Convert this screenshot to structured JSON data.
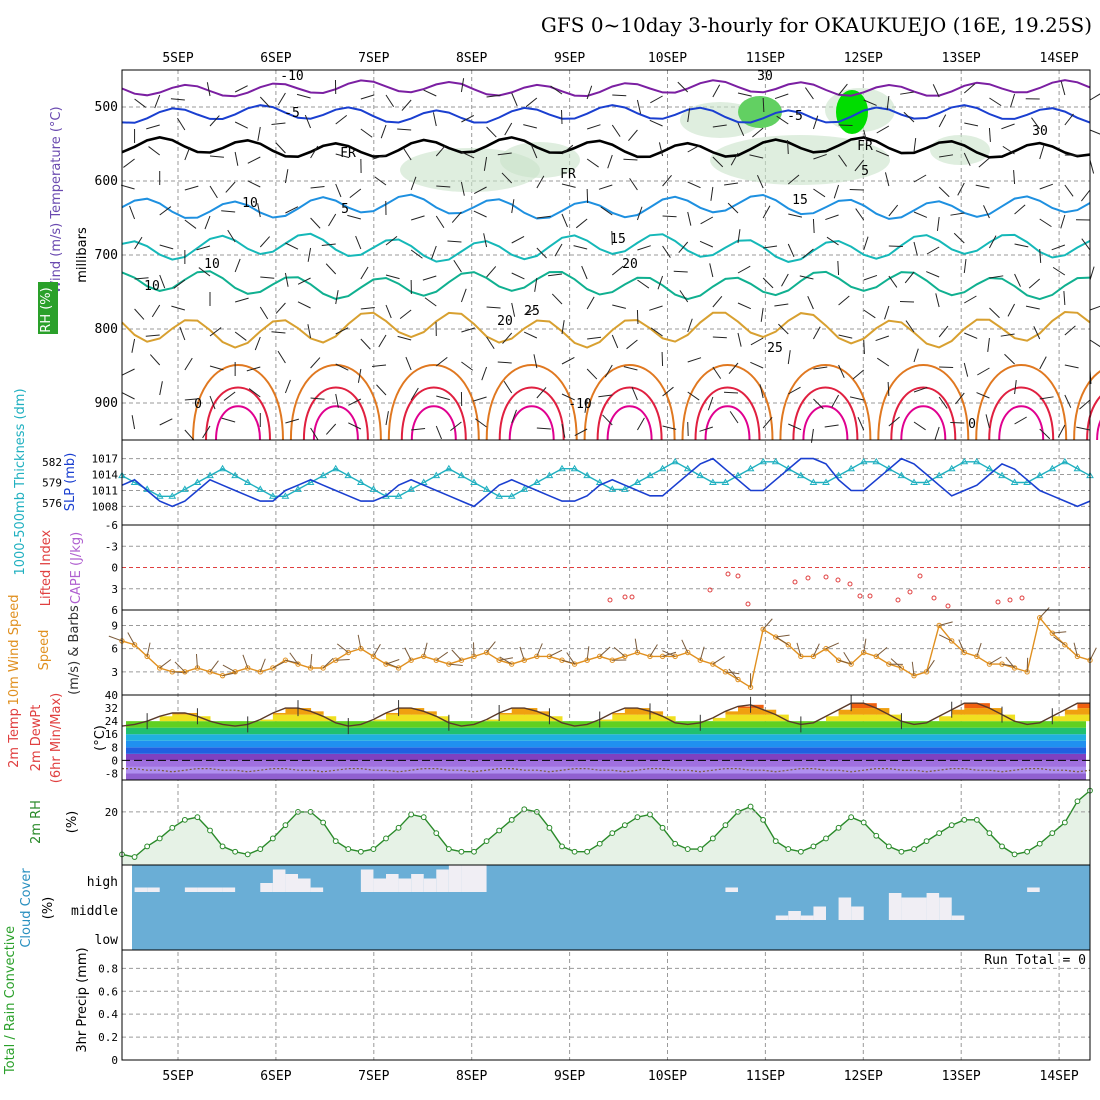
{
  "chart_data": {
    "type": "meteogram",
    "title": "GFS 0~10day 3-hourly for OKAUKUEJO (16E, 19.25S)",
    "dates": [
      "5SEP",
      "6SEP",
      "7SEP",
      "8SEP",
      "9SEP",
      "10SEP",
      "11SEP",
      "12SEP",
      "13SEP",
      "14SEP"
    ],
    "steps": 78,
    "colors": {
      "grid": "#9a9a9a",
      "temp_cold": "#7b1fa2",
      "temp_m5": "#1a3fd0",
      "temp_5": "#1e90e0",
      "temp_10": "#15b8b8",
      "temp_15": "#10b090",
      "temp_20": "#d8a030",
      "temp_25": "#e07820",
      "temp_30": "#e02040",
      "temp_35": "#e00090",
      "rh": "#2a9a2a",
      "slp": "#1a3fd0",
      "thick": "#20b0c0",
      "li": "#e04040",
      "wind": "#e09020",
      "barb": "#7a5a3a",
      "cloud_bg": "#6aaed6",
      "cloud": "#f0eef4",
      "rh2m": "#2a8a2a",
      "rh2m_fill": "#e6f2e6",
      "dewpt": "#7a5a3a",
      "zero": "#000000"
    },
    "upper_air": {
      "title": "Wind (m/s) Temperature (°C)",
      "ylabel": "millibars",
      "rh_label": "RH (%)",
      "yticks": [
        "500",
        "600",
        "700",
        "800",
        "900"
      ],
      "ylim": [
        450,
        950
      ],
      "isotherm_labels": [
        "-10",
        "-5",
        "FR",
        "10",
        "5",
        "10",
        "15",
        "20",
        "25",
        "25",
        "0",
        "0",
        "-10",
        "-5",
        "FR",
        "FR",
        "5",
        "15",
        "10",
        "20",
        "30",
        "30"
      ],
      "isotherms": [
        {
          "level": 475,
          "amp": 8,
          "label": "-10"
        },
        {
          "level": 510,
          "amp": 9,
          "label": "-5"
        },
        {
          "level": 555,
          "amp": 10,
          "label": "FR"
        },
        {
          "level": 635,
          "amp": 12,
          "label": "5"
        },
        {
          "level": 690,
          "amp": 14,
          "label": "10"
        },
        {
          "level": 740,
          "amp": 14,
          "label": "15"
        },
        {
          "level": 800,
          "amp": 18,
          "label": "20"
        }
      ]
    },
    "slp_thickness": {
      "ylabel_left": "1000-500mb Thickness (dm)",
      "ylabel_right": "SLP (mb)",
      "thickness_ticks": [
        "582",
        "579",
        "576"
      ],
      "slp_ticks": [
        "1017",
        "1014",
        "1011",
        "1008"
      ],
      "thickness_range": [
        574,
        584
      ],
      "slp_range": [
        1006,
        1019
      ],
      "thickness": [
        580,
        579,
        578,
        577,
        577,
        578,
        579,
        580,
        581,
        580,
        579,
        578,
        577,
        577,
        578,
        579,
        580,
        581,
        580,
        579,
        578,
        577,
        577,
        578,
        579,
        580,
        581,
        580,
        579,
        578,
        577,
        577,
        578,
        579,
        580,
        581,
        581,
        580,
        579,
        578,
        578,
        579,
        580,
        581,
        582,
        581,
        580,
        579,
        579,
        580,
        581,
        582,
        582,
        581,
        580,
        579,
        579,
        580,
        581,
        582,
        582,
        581,
        580,
        579,
        579,
        580,
        581,
        582,
        582,
        581,
        580,
        579,
        579,
        580,
        581,
        582,
        581,
        580
      ],
      "slp": [
        1012,
        1013,
        1011,
        1009,
        1008,
        1009,
        1011,
        1013,
        1012,
        1011,
        1010,
        1009,
        1009,
        1011,
        1012,
        1013,
        1012,
        1011,
        1010,
        1009,
        1009,
        1010,
        1012,
        1013,
        1012,
        1011,
        1010,
        1009,
        1008,
        1010,
        1012,
        1013,
        1012,
        1011,
        1010,
        1009,
        1009,
        1010,
        1012,
        1013,
        1012,
        1011,
        1010,
        1010,
        1012,
        1014,
        1016,
        1017,
        1015,
        1013,
        1011,
        1011,
        1013,
        1015,
        1017,
        1017,
        1016,
        1013,
        1011,
        1011,
        1013,
        1015,
        1017,
        1016,
        1014,
        1012,
        1010,
        1011,
        1012,
        1014,
        1016,
        1015,
        1013,
        1011,
        1010,
        1009,
        1008,
        1009
      ]
    },
    "lifted_index": {
      "ylabel_left": "Lifted Index",
      "ylabel_right": "CAPE (J/kg)",
      "yticks": [
        "-6",
        "-3",
        "0",
        "3",
        "6"
      ],
      "ylim": [
        -6,
        6
      ],
      "values": [
        null,
        null,
        null,
        null,
        null,
        null,
        null,
        null,
        null,
        null,
        null,
        null,
        null,
        null,
        null,
        null,
        null,
        null,
        null,
        null,
        null,
        null,
        null,
        null,
        null,
        null,
        null,
        null,
        null,
        null,
        null,
        null,
        null,
        null,
        null,
        null,
        null,
        null,
        null,
        null,
        null,
        null,
        null,
        null,
        null,
        null,
        null,
        null,
        null,
        null,
        null,
        null,
        null,
        null,
        null,
        null,
        null,
        null,
        null,
        null,
        null,
        null,
        null,
        null,
        null,
        null,
        null,
        null,
        null,
        null,
        null,
        null,
        null,
        null,
        null,
        null,
        null,
        null
      ]
    },
    "wind10m": {
      "ylabel_left": "10m Wind Speed",
      "ylabel_right": "(m/s) & Barbs",
      "yticks": [
        "9",
        "6",
        "3"
      ],
      "ylim": [
        0,
        11
      ],
      "values": [
        7,
        6.5,
        5,
        3.5,
        3,
        3,
        3.5,
        3,
        2.5,
        3,
        3.5,
        3,
        3.5,
        4.5,
        4,
        3.5,
        3.5,
        4.5,
        5.5,
        6,
        5,
        4,
        3.5,
        4.5,
        5,
        4.5,
        4,
        4.5,
        5,
        5.5,
        4.5,
        4,
        4.5,
        5,
        5,
        4.5,
        4,
        4.5,
        5,
        4.5,
        5,
        5.5,
        5,
        5,
        5,
        5.5,
        4.5,
        4,
        3,
        2,
        1,
        8.5,
        7.5,
        6.5,
        5,
        5,
        6,
        4.5,
        4,
        5.5,
        5,
        4,
        3.5,
        2.5,
        3,
        9,
        7,
        5.5,
        5,
        4,
        4,
        3.5,
        3,
        10,
        8,
        6.5,
        5,
        4.5
      ]
    },
    "temp2m": {
      "ylabel_left": "2m Temp 2m DewPt (6hr Min/Max)",
      "ylabel_right": "(°C)",
      "yticks": [
        "40",
        "32",
        "24",
        "16",
        "8",
        "0",
        "-8"
      ],
      "ylim": [
        -12,
        40
      ],
      "temp": [
        21,
        22,
        24,
        27,
        29,
        29,
        27,
        24,
        22,
        21,
        22,
        25,
        29,
        32,
        32,
        30,
        27,
        23,
        21,
        22,
        25,
        29,
        32,
        32,
        30,
        27,
        23,
        21,
        22,
        25,
        29,
        32,
        32,
        30,
        27,
        23,
        21,
        22,
        25,
        29,
        32,
        32,
        30,
        27,
        23,
        22,
        23,
        26,
        30,
        33,
        34,
        31,
        28,
        24,
        22,
        23,
        27,
        31,
        35,
        35,
        32,
        28,
        24,
        22,
        23,
        27,
        31,
        35,
        35,
        32,
        28,
        24,
        22,
        23,
        27,
        31,
        35,
        35
      ],
      "dewpt": [
        -5,
        -5,
        -6,
        -6,
        -7,
        -6,
        -5,
        -5,
        -6,
        -6,
        -7,
        -6,
        -5,
        -5,
        -6,
        -6,
        -7,
        -6,
        -5,
        -5,
        -6,
        -6,
        -7,
        -6,
        -5,
        -5,
        -6,
        -6,
        -7,
        -6,
        -5,
        -5,
        -6,
        -6,
        -7,
        -6,
        -5,
        -5,
        -6,
        -6,
        -7,
        -6,
        -5,
        -5,
        -6,
        -6,
        -7,
        -6,
        -5,
        -5,
        -6,
        -6,
        -7,
        -6,
        -5,
        -5,
        -6,
        -6,
        -7,
        -6,
        -5,
        -5,
        -6,
        -6,
        -7,
        -6,
        -5,
        -5,
        -6,
        -6,
        -7,
        -6,
        -5,
        -5,
        -6,
        -6,
        -7,
        -6
      ]
    },
    "rh2m": {
      "ylabel_left": "2m RH",
      "ylabel_right": "(%)",
      "yticks": [
        "20"
      ],
      "ylim": [
        0,
        32
      ],
      "values": [
        4,
        3,
        7,
        10,
        14,
        17,
        18,
        13,
        7,
        5,
        4,
        6,
        10,
        15,
        20,
        20,
        16,
        9,
        6,
        5,
        6,
        10,
        14,
        19,
        18,
        12,
        6,
        5,
        5,
        9,
        13,
        17,
        21,
        20,
        14,
        7,
        5,
        5,
        8,
        12,
        15,
        18,
        19,
        14,
        8,
        6,
        6,
        10,
        15,
        20,
        22,
        17,
        9,
        6,
        5,
        7,
        10,
        14,
        18,
        16,
        11,
        7,
        5,
        6,
        9,
        12,
        15,
        17,
        17,
        12,
        7,
        4,
        5,
        8,
        12,
        16,
        24,
        28
      ]
    },
    "cloud": {
      "ylabel_left": "Cloud Cover",
      "ylabel_right": "(%)",
      "yticks": [
        "high",
        "middle",
        "low"
      ],
      "high": [
        0,
        1,
        1,
        0,
        0,
        1,
        1,
        1,
        1,
        0,
        0,
        2,
        5,
        4,
        3,
        1,
        0,
        0,
        0,
        5,
        3,
        4,
        3,
        4,
        3,
        5,
        6,
        6,
        6,
        0,
        0,
        0,
        0,
        0,
        0,
        0,
        0,
        0,
        0,
        0,
        0,
        0,
        0,
        0,
        0,
        0,
        0,
        0,
        1,
        0,
        0,
        0,
        0,
        0,
        0,
        0,
        0,
        0,
        0,
        0,
        0,
        0,
        0,
        0,
        0,
        0,
        0,
        0,
        0,
        0,
        0,
        0,
        1,
        0,
        0,
        0,
        0,
        0
      ],
      "middle": [
        0,
        0,
        0,
        0,
        0,
        0,
        0,
        0,
        0,
        0,
        0,
        0,
        0,
        0,
        0,
        0,
        0,
        0,
        0,
        0,
        0,
        0,
        0,
        0,
        0,
        0,
        0,
        0,
        0,
        0,
        0,
        0,
        0,
        0,
        0,
        0,
        0,
        0,
        0,
        0,
        0,
        0,
        0,
        0,
        0,
        0,
        0,
        0,
        0,
        0,
        0,
        0,
        1,
        2,
        1,
        3,
        0,
        5,
        3,
        0,
        0,
        6,
        5,
        5,
        6,
        5,
        1,
        0,
        0,
        0,
        0,
        0,
        0,
        0,
        0,
        0,
        0,
        0
      ]
    },
    "precip": {
      "ylabel_left": "Total / Rain Convective",
      "ylabel_right": "3hr Precip (mm)",
      "yticks": [
        "0.8",
        "0.6",
        "0.4",
        "0.2",
        "0"
      ],
      "ylim": [
        0,
        0.96
      ],
      "run_total": "Run Total = 0",
      "values": [
        0,
        0,
        0,
        0,
        0,
        0,
        0,
        0,
        0,
        0,
        0,
        0,
        0,
        0,
        0,
        0,
        0,
        0,
        0,
        0,
        0,
        0,
        0,
        0,
        0,
        0,
        0,
        0,
        0,
        0,
        0,
        0,
        0,
        0,
        0,
        0,
        0,
        0,
        0,
        0,
        0,
        0,
        0,
        0,
        0,
        0,
        0,
        0,
        0,
        0,
        0,
        0,
        0,
        0,
        0,
        0,
        0,
        0,
        0,
        0,
        0,
        0,
        0,
        0,
        0,
        0,
        0,
        0,
        0,
        0,
        0,
        0,
        0,
        0,
        0,
        0,
        0,
        0
      ]
    }
  }
}
